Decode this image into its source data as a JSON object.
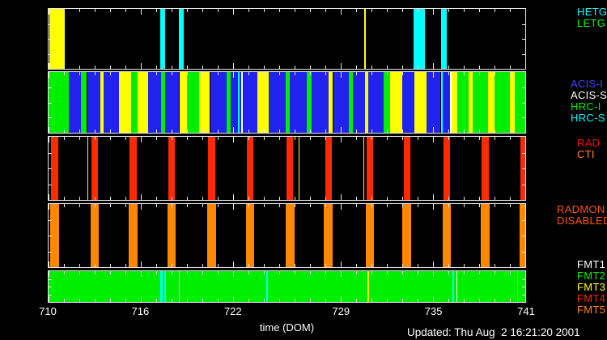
{
  "page": {
    "updated_text": "Updated: Thu Aug  2 16:21:20 2001"
  },
  "chart_data": {
    "type": "timeline",
    "title": "",
    "xlabel": "time (DOM)",
    "x_range": [
      710,
      741
    ],
    "x_ticks": [
      710,
      716,
      722,
      729,
      735,
      741
    ],
    "x_minor_step": 1,
    "legend_position": "right",
    "grid": false,
    "panels": [
      {
        "name": "gratings",
        "labels": [
          {
            "text": "HETG",
            "color": "#00ffff"
          },
          {
            "text": "LETG",
            "color": "#00ff00"
          }
        ],
        "background": "#000000",
        "segments": [
          [
            710.05,
            711.05,
            "#ffff00"
          ],
          [
            717.25,
            717.6,
            "#00ffff"
          ],
          [
            718.45,
            718.8,
            "#00ffff"
          ],
          [
            730.55,
            730.65,
            "#ffff00"
          ],
          [
            733.75,
            734.5,
            "#00ffff"
          ],
          [
            735.55,
            735.9,
            "#00ffff"
          ]
        ]
      },
      {
        "name": "instruments",
        "labels": [
          {
            "text": "ACIS-I",
            "color": "#4444ff"
          },
          {
            "text": "ACIS-S",
            "color": "#ffffff"
          },
          {
            "text": "HRC-I",
            "color": "#00ee00"
          },
          {
            "text": "HRC-S",
            "color": "#00ffff"
          }
        ],
        "background": "#000000",
        "segments": [
          [
            710.0,
            711.3,
            "#00ee00"
          ],
          [
            711.3,
            712.1,
            "#2222ee"
          ],
          [
            712.1,
            712.5,
            "#00ee00"
          ],
          [
            712.5,
            713.35,
            "#2222ee"
          ],
          [
            713.35,
            713.6,
            "#ffff00"
          ],
          [
            713.6,
            714.6,
            "#2222ee"
          ],
          [
            714.6,
            715.35,
            "#ffff00"
          ],
          [
            715.35,
            715.8,
            "#00ee00"
          ],
          [
            715.8,
            716.5,
            "#ffff00"
          ],
          [
            716.5,
            717.3,
            "#2222ee"
          ],
          [
            717.3,
            717.6,
            "#00ee00"
          ],
          [
            717.6,
            718.5,
            "#2222ee"
          ],
          [
            718.5,
            719.0,
            "#ffff00"
          ],
          [
            719.0,
            719.8,
            "#00ee00"
          ],
          [
            719.8,
            720.5,
            "#ffff00"
          ],
          [
            720.5,
            721.6,
            "#2222ee"
          ],
          [
            721.6,
            721.85,
            "#00ee00"
          ],
          [
            721.85,
            722.3,
            "#2222ee"
          ],
          [
            722.3,
            722.42,
            "#00ffff"
          ],
          [
            722.42,
            722.55,
            "#2222ee"
          ],
          [
            722.55,
            722.65,
            "#ffffff"
          ],
          [
            722.65,
            723.6,
            "#2222ee"
          ],
          [
            723.6,
            724.3,
            "#ffff00"
          ],
          [
            724.3,
            725.4,
            "#2222ee"
          ],
          [
            725.4,
            725.7,
            "#00ee00"
          ],
          [
            725.7,
            726.8,
            "#2222ee"
          ],
          [
            726.8,
            727.1,
            "#00ee00"
          ],
          [
            727.1,
            728.2,
            "#2222ee"
          ],
          [
            728.2,
            728.5,
            "#ffff00"
          ],
          [
            728.5,
            729.5,
            "#2222ee"
          ],
          [
            729.5,
            729.8,
            "#00ee00"
          ],
          [
            729.8,
            730.6,
            "#2222ee"
          ],
          [
            730.6,
            730.8,
            "#ffff00"
          ],
          [
            730.8,
            731.8,
            "#2222ee"
          ],
          [
            731.8,
            732.2,
            "#00ee00"
          ],
          [
            732.2,
            733.0,
            "#ffff00"
          ],
          [
            733.0,
            733.8,
            "#2222ee"
          ],
          [
            733.8,
            734.6,
            "#ffff00"
          ],
          [
            734.6,
            735.5,
            "#2222ee"
          ],
          [
            735.5,
            735.65,
            "#00ffff"
          ],
          [
            735.65,
            736.1,
            "#2222ee"
          ],
          [
            736.1,
            736.2,
            "#ffffff"
          ],
          [
            736.2,
            736.6,
            "#ffff00"
          ],
          [
            736.6,
            737.3,
            "#00ee00"
          ],
          [
            737.3,
            737.6,
            "#ffff00"
          ],
          [
            737.6,
            738.6,
            "#00ee00"
          ],
          [
            738.6,
            739.0,
            "#ffff00"
          ],
          [
            739.0,
            740.0,
            "#00ee00"
          ],
          [
            740.0,
            740.3,
            "#ffff00"
          ],
          [
            740.3,
            741.0,
            "#00ee00"
          ]
        ]
      },
      {
        "name": "rad-cti",
        "labels": [
          {
            "text": "RAD",
            "color": "#ff0000"
          },
          {
            "text": "CTI",
            "color": "#ff8800"
          }
        ],
        "background": "#000000",
        "segments": [
          [
            710.18,
            710.62,
            "#ff2a00"
          ],
          [
            712.52,
            712.6,
            "#ffff00"
          ],
          [
            712.78,
            713.22,
            "#ff2a00"
          ],
          [
            715.28,
            715.72,
            "#ff2a00"
          ],
          [
            717.78,
            718.22,
            "#ff2a00"
          ],
          [
            720.38,
            720.82,
            "#ff2a00"
          ],
          [
            722.88,
            723.32,
            "#ff2a00"
          ],
          [
            725.48,
            725.92,
            "#ff2a00"
          ],
          [
            726.25,
            726.33,
            "#ffff00"
          ],
          [
            727.98,
            728.42,
            "#ff2a00"
          ],
          [
            730.45,
            730.53,
            "#ffff00"
          ],
          [
            730.68,
            731.12,
            "#ff2a00"
          ],
          [
            733.08,
            733.52,
            "#ff2a00"
          ],
          [
            735.68,
            736.12,
            "#ff2a00"
          ],
          [
            738.18,
            738.62,
            "#ff2a00"
          ],
          [
            740.68,
            741.0,
            "#ff2a00"
          ]
        ]
      },
      {
        "name": "radmon-disabled",
        "labels": [
          {
            "text": "RADMON",
            "color": "#ff5500"
          },
          {
            "text": "DISABLED",
            "color": "#ff5500"
          }
        ],
        "background": "#000000",
        "segments": [
          [
            710.12,
            710.68,
            "#ff8800"
          ],
          [
            712.72,
            713.28,
            "#ff8800"
          ],
          [
            715.22,
            715.78,
            "#ff8800"
          ],
          [
            717.72,
            718.28,
            "#ff8800"
          ],
          [
            720.32,
            720.88,
            "#ff8800"
          ],
          [
            722.82,
            723.38,
            "#ff8800"
          ],
          [
            725.42,
            725.98,
            "#ff8800"
          ],
          [
            727.92,
            728.48,
            "#ff8800"
          ],
          [
            730.62,
            731.18,
            "#ff8800"
          ],
          [
            733.02,
            733.58,
            "#ff8800"
          ],
          [
            735.62,
            736.18,
            "#ff8800"
          ],
          [
            738.12,
            738.68,
            "#ff8800"
          ],
          [
            740.62,
            741.0,
            "#ff8800"
          ]
        ]
      },
      {
        "name": "telemetry-format",
        "labels": [
          {
            "text": "FMT1",
            "color": "#ffffff"
          },
          {
            "text": "FMT2",
            "color": "#00ee00"
          },
          {
            "text": "FMT3",
            "color": "#ffff00"
          },
          {
            "text": "FMT4",
            "color": "#ff2200"
          },
          {
            "text": "FMT5",
            "color": "#ff8800"
          }
        ],
        "background": "#000000",
        "segments": [
          [
            710.0,
            741.0,
            "#00ee00"
          ],
          [
            717.28,
            717.4,
            "#00ffff"
          ],
          [
            717.55,
            717.65,
            "#00ffff"
          ],
          [
            718.45,
            718.55,
            "#ffffff"
          ],
          [
            724.15,
            724.28,
            "#00ffff"
          ],
          [
            730.75,
            730.85,
            "#ffff00"
          ],
          [
            736.25,
            736.35,
            "#00ffff"
          ],
          [
            736.5,
            736.6,
            "#ffffff"
          ],
          [
            740.45,
            740.55,
            "#ff8800"
          ]
        ]
      }
    ]
  }
}
